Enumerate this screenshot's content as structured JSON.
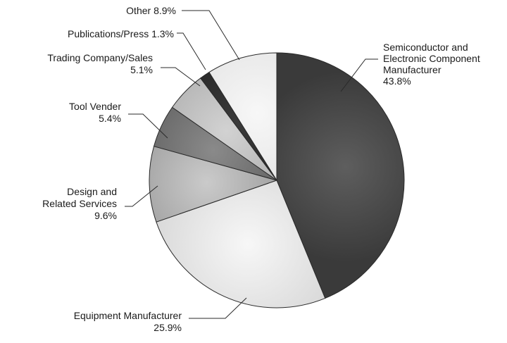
{
  "chart_data": {
    "type": "pie",
    "title": "",
    "start": "12 o'clock",
    "direction": "clockwise",
    "slices": [
      {
        "label_lines": [
          "Semiconductor and",
          "Electronic Component",
          "Manufacturer"
        ],
        "pct_text": "43.8%",
        "value": 43.8,
        "fill_color": "#3a3a3a",
        "center_color": "#5e5e5e"
      },
      {
        "label_lines": [
          "Equipment Manufacturer"
        ],
        "pct_text": "25.9%",
        "value": 25.9,
        "fill_color": "#d9d9d9",
        "center_color": "#f7f7f7"
      },
      {
        "label_lines": [
          "Design and",
          "Related Services"
        ],
        "pct_text": "9.6%",
        "value": 9.6,
        "fill_color": "#969696",
        "center_color": "#cacaca"
      },
      {
        "label_lines": [
          "Tool Vender"
        ],
        "pct_text": "5.4%",
        "value": 5.4,
        "fill_color": "#5a5a5a",
        "center_color": "#8a8a8a"
      },
      {
        "label_lines": [
          "Trading Company/Sales"
        ],
        "pct_text": "5.1%",
        "value": 5.1,
        "fill_color": "#a8a8a8",
        "center_color": "#d2d2d2"
      },
      {
        "label_lines": [
          "Publications/Press"
        ],
        "pct_text": "1.3%",
        "value": 1.3,
        "fill_color": "#222222",
        "center_color": "#3a3a3a"
      },
      {
        "label_lines": [
          "Other"
        ],
        "pct_text": "8.9%",
        "value": 8.9,
        "fill_color": "#e2e2e2",
        "center_color": "#f7f7f7"
      }
    ]
  }
}
